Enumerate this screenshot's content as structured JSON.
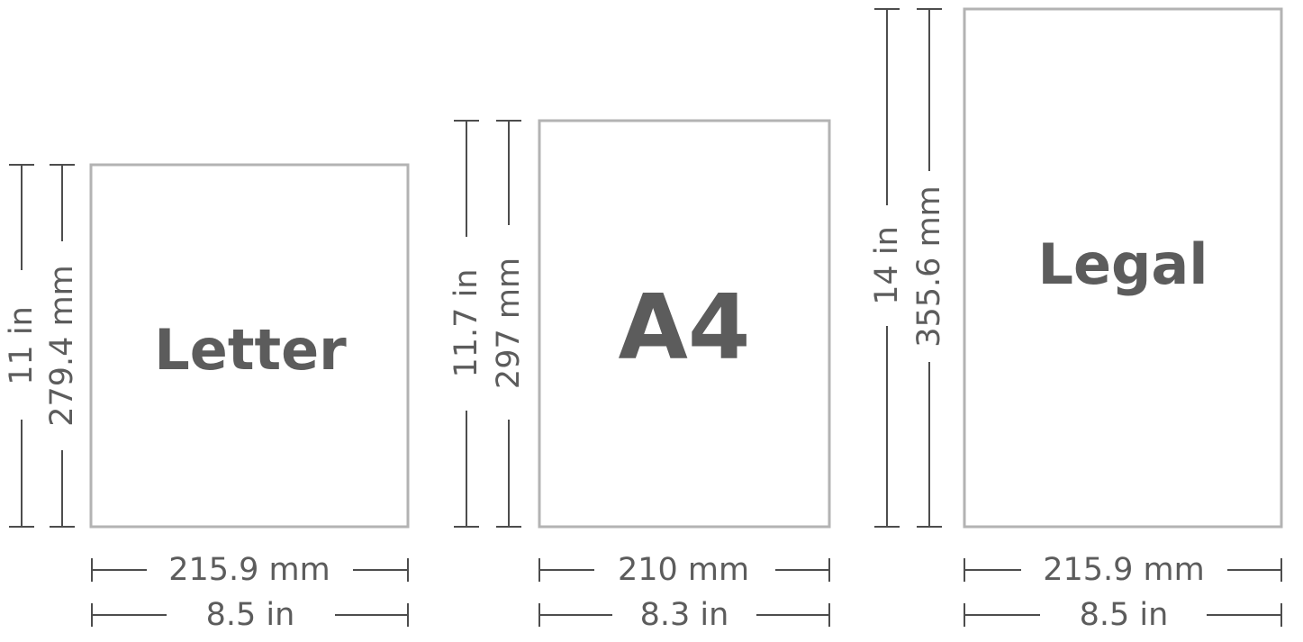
{
  "diagram": {
    "line_color": "#4d4d4d",
    "sheet_border_color": "#b3b3b3",
    "text_color": "#5c5c5c",
    "papers": [
      {
        "name": "Letter",
        "width_mm": "215.9 mm",
        "width_in": "8.5 in",
        "height_in": "11 in",
        "height_mm": "279.4 mm"
      },
      {
        "name": "A4",
        "width_mm": "210 mm",
        "width_in": "8.3 in",
        "height_in": "11.7 in",
        "height_mm": "297 mm"
      },
      {
        "name": "Legal",
        "width_mm": "215.9 mm",
        "width_in": "8.5 in",
        "height_in": "14 in",
        "height_mm": "355.6 mm"
      }
    ]
  }
}
